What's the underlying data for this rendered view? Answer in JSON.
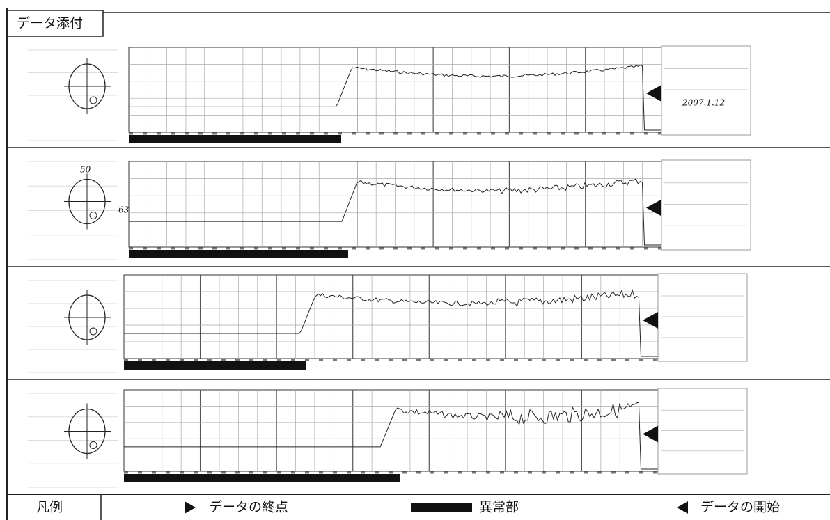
{
  "header": {
    "title": "データ添付"
  },
  "panels": [
    {
      "notes": [
        "2007.1.12"
      ]
    },
    {
      "notes": [
        "50",
        "63"
      ]
    },
    {
      "notes": []
    },
    {
      "notes": []
    }
  ],
  "legend": {
    "label": "凡例",
    "items": [
      "データの終点",
      "異常部",
      "データの開始"
    ]
  }
}
